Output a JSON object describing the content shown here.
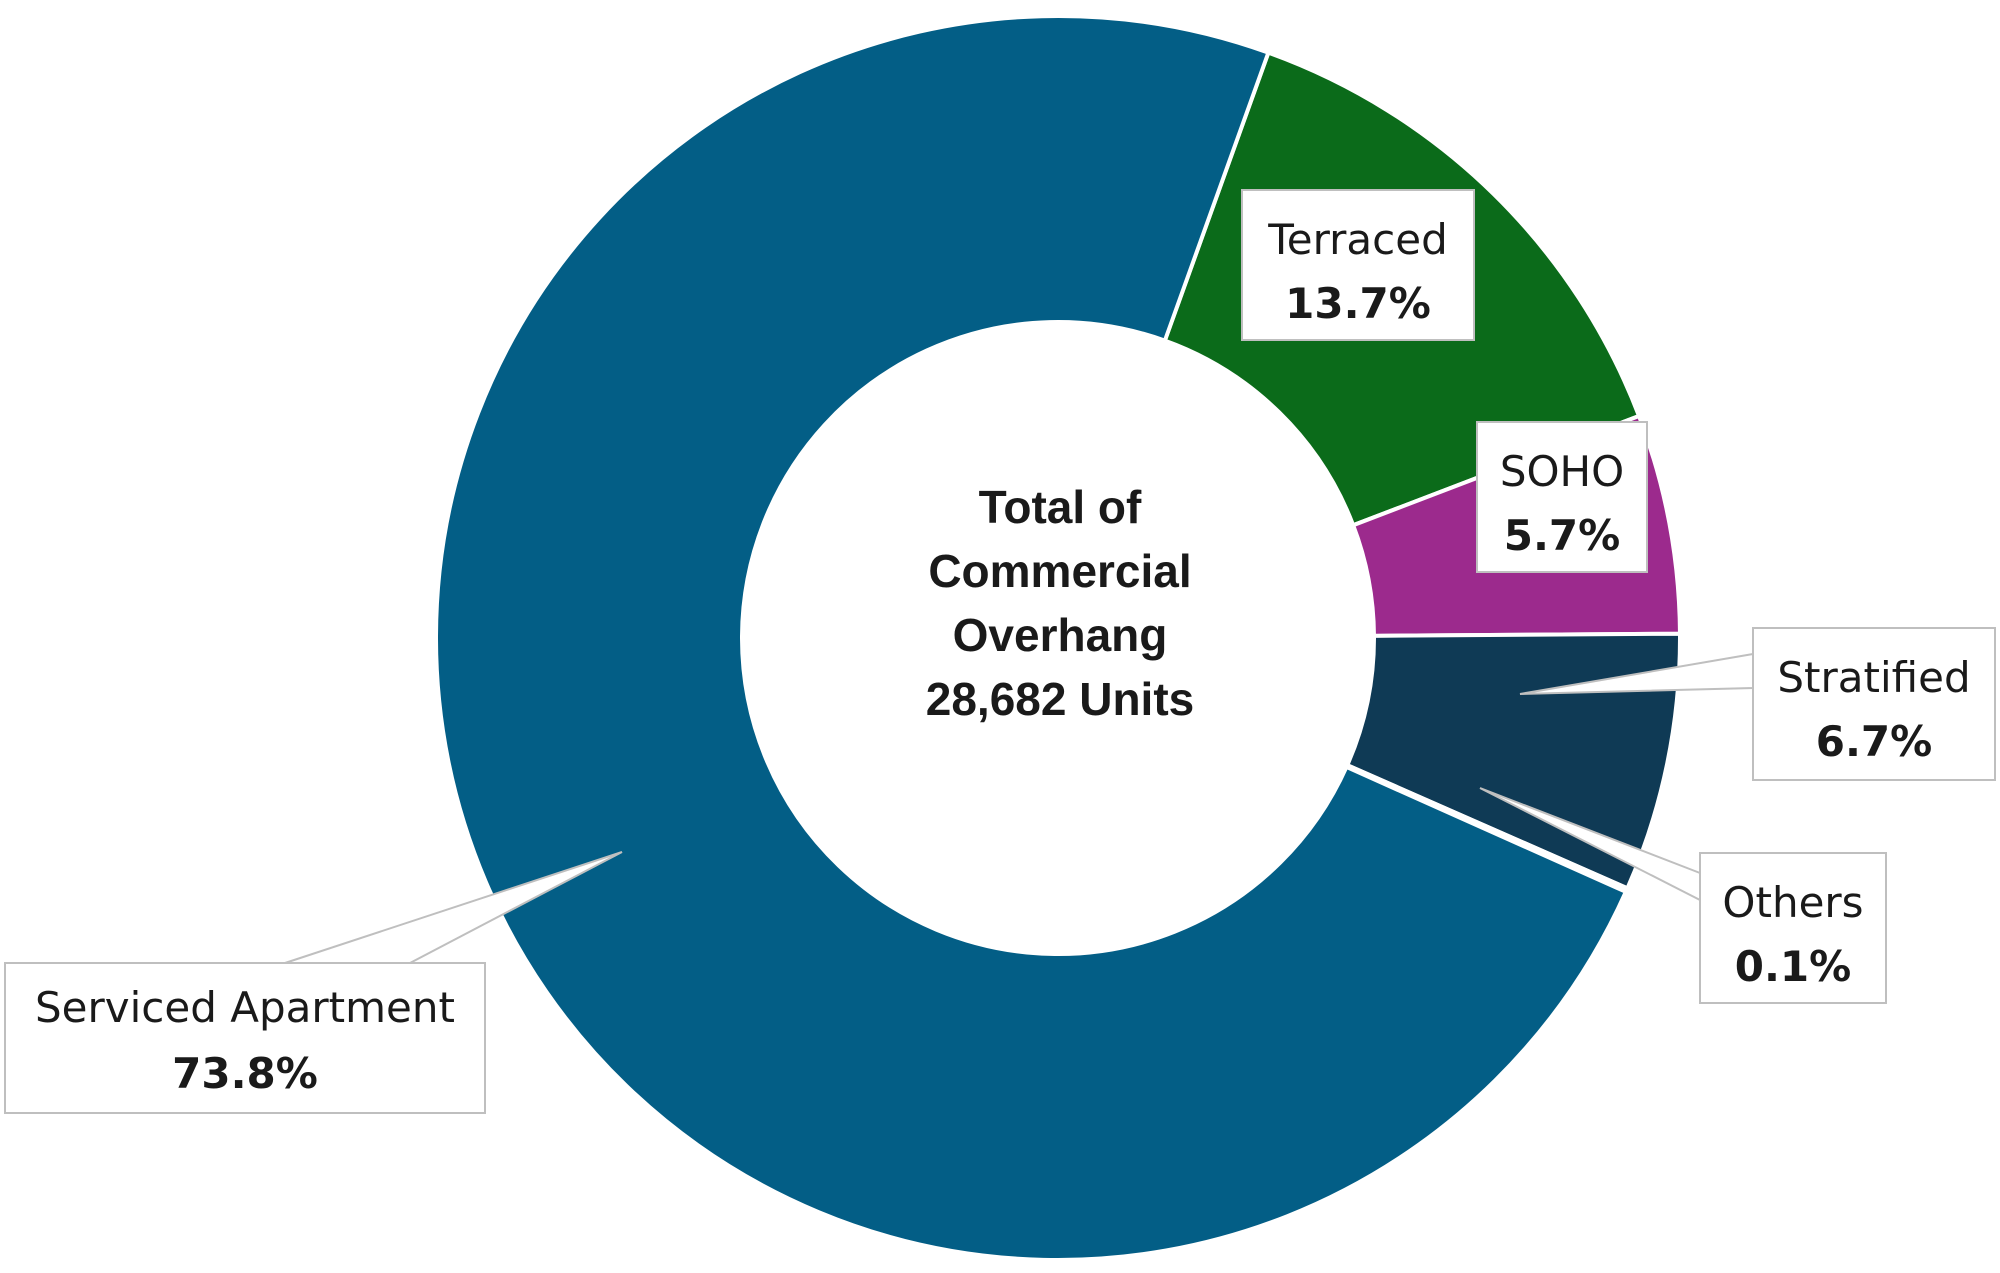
{
  "chart_data": {
    "type": "pie",
    "donut": true,
    "center_text": [
      "Total of",
      "Commercial",
      "Overhang",
      "28,682 Units"
    ],
    "slices": [
      {
        "name": "Terraced",
        "value": 13.7,
        "value_label": "13.7%",
        "color": "#0b6b1a"
      },
      {
        "name": "SOHO",
        "value": 5.7,
        "value_label": "5.7%",
        "color": "#9c2a8d"
      },
      {
        "name": "Stratified",
        "value": 6.7,
        "value_label": "6.7%",
        "color": "#0f3a55"
      },
      {
        "name": "Others",
        "value": 0.1,
        "value_label": "0.1%",
        "color": "#2e5a2e"
      },
      {
        "name": "Serviced Apartment",
        "value": 73.8,
        "value_label": "73.8%",
        "color": "#035e86"
      }
    ]
  }
}
